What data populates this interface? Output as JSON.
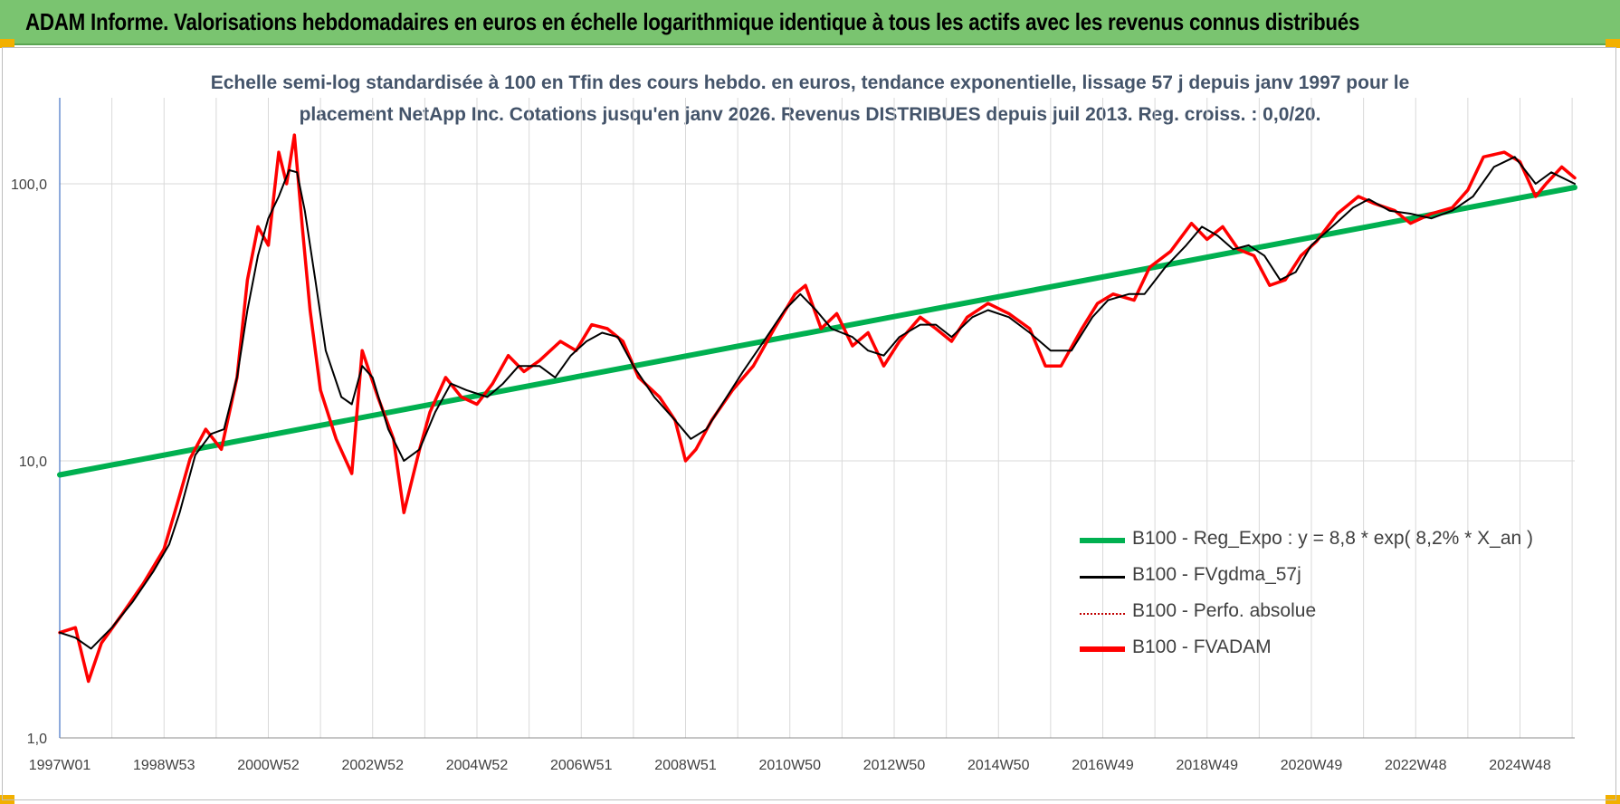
{
  "banner": {
    "title": "ADAM Informe. Valorisations hebdomadaires en euros en échelle logarithmique identique à tous les actifs avec les revenus connus distribués"
  },
  "chart_subtitle_line1": "Echelle semi-log standardisée à 100 en Tfin des cours hebdo. en euros, tendance exponentielle, lissage 57 j depuis janv 1997 pour le",
  "chart_subtitle_line2": "placement NetApp Inc. Cotations jusqu'en janv 2026. Revenus DISTRIBUES depuis juil 2013. Reg. croiss. : 0,0/20.",
  "colors": {
    "banner": "#7ac470",
    "regression": "#00b050",
    "smoothed": "#000000",
    "perf_absolue": "#c00000",
    "fvadam": "#ff0000",
    "grid": "#d9d9d9",
    "subtitle": "#44546a"
  },
  "chart_data": {
    "type": "line",
    "y_scale": "log",
    "ylim": [
      1,
      160
    ],
    "y_ticks": [
      {
        "value": 1,
        "label": "1,0"
      },
      {
        "value": 10,
        "label": "10,0"
      },
      {
        "value": 100,
        "label": "100,0"
      }
    ],
    "x_range": [
      1997.0,
      2026.05
    ],
    "x_tick_labels": [
      "1997W01",
      "1998W53",
      "2000W52",
      "2002W52",
      "2004W52",
      "2006W51",
      "2008W51",
      "2010W50",
      "2012W50",
      "2014W50",
      "2016W49",
      "2018W49",
      "2020W49",
      "2022W48",
      "2024W48"
    ],
    "x_tick_years": [
      1997.0,
      1999.0,
      2001.0,
      2003.0,
      2005.0,
      2007.0,
      2009.0,
      2011.0,
      2013.0,
      2015.0,
      2017.0,
      2019.0,
      2021.0,
      2023.0,
      2025.0
    ],
    "grid": true,
    "legend_placement": "lower-right",
    "series": [
      {
        "name": "B100 - Reg_Expo : y = 8,8 * exp( 8,2% *  X_an )",
        "kind": "regression",
        "points": [
          [
            1997.0,
            8.9
          ],
          [
            2026.05,
            97
          ]
        ]
      },
      {
        "name": "B100 - FVgdma_57j",
        "kind": "smoothed",
        "points": [
          [
            1997.0,
            2.4
          ],
          [
            1997.3,
            2.3
          ],
          [
            1997.6,
            2.1
          ],
          [
            1998.0,
            2.5
          ],
          [
            1998.4,
            3.1
          ],
          [
            1998.8,
            4.0
          ],
          [
            1999.1,
            5.0
          ],
          [
            1999.3,
            6.5
          ],
          [
            1999.6,
            10.5
          ],
          [
            1999.9,
            12.5
          ],
          [
            2000.15,
            13
          ],
          [
            2000.4,
            20
          ],
          [
            2000.6,
            35
          ],
          [
            2000.8,
            55
          ],
          [
            2001.0,
            75
          ],
          [
            2001.2,
            90
          ],
          [
            2001.4,
            112
          ],
          [
            2001.55,
            110
          ],
          [
            2001.7,
            80
          ],
          [
            2001.9,
            45
          ],
          [
            2002.1,
            25
          ],
          [
            2002.4,
            17
          ],
          [
            2002.6,
            16
          ],
          [
            2002.8,
            22
          ],
          [
            2003.0,
            20
          ],
          [
            2003.3,
            13
          ],
          [
            2003.6,
            10
          ],
          [
            2003.9,
            11
          ],
          [
            2004.2,
            15
          ],
          [
            2004.5,
            19
          ],
          [
            2004.8,
            18
          ],
          [
            2005.2,
            17
          ],
          [
            2005.5,
            19
          ],
          [
            2005.8,
            22
          ],
          [
            2006.2,
            22
          ],
          [
            2006.5,
            20
          ],
          [
            2006.8,
            24
          ],
          [
            2007.1,
            27
          ],
          [
            2007.4,
            29
          ],
          [
            2007.7,
            28
          ],
          [
            2008.0,
            22
          ],
          [
            2008.4,
            17
          ],
          [
            2008.8,
            14
          ],
          [
            2009.1,
            12
          ],
          [
            2009.4,
            13
          ],
          [
            2009.7,
            16
          ],
          [
            2010.1,
            21
          ],
          [
            2010.5,
            27
          ],
          [
            2010.9,
            35
          ],
          [
            2011.2,
            40
          ],
          [
            2011.5,
            35
          ],
          [
            2011.8,
            30
          ],
          [
            2012.2,
            28
          ],
          [
            2012.5,
            25
          ],
          [
            2012.8,
            24
          ],
          [
            2013.1,
            28
          ],
          [
            2013.5,
            31
          ],
          [
            2013.8,
            31
          ],
          [
            2014.1,
            28
          ],
          [
            2014.5,
            33
          ],
          [
            2014.8,
            35
          ],
          [
            2015.2,
            33
          ],
          [
            2015.6,
            29
          ],
          [
            2016.0,
            25
          ],
          [
            2016.4,
            25
          ],
          [
            2016.8,
            33
          ],
          [
            2017.1,
            38
          ],
          [
            2017.5,
            40
          ],
          [
            2017.8,
            40
          ],
          [
            2018.2,
            50
          ],
          [
            2018.6,
            60
          ],
          [
            2018.9,
            70
          ],
          [
            2019.2,
            65
          ],
          [
            2019.5,
            58
          ],
          [
            2019.8,
            60
          ],
          [
            2020.1,
            55
          ],
          [
            2020.4,
            45
          ],
          [
            2020.7,
            48
          ],
          [
            2021.0,
            60
          ],
          [
            2021.4,
            70
          ],
          [
            2021.8,
            82
          ],
          [
            2022.1,
            88
          ],
          [
            2022.5,
            80
          ],
          [
            2022.9,
            78
          ],
          [
            2023.3,
            75
          ],
          [
            2023.7,
            80
          ],
          [
            2024.1,
            90
          ],
          [
            2024.5,
            115
          ],
          [
            2024.9,
            125
          ],
          [
            2025.3,
            100
          ],
          [
            2025.6,
            110
          ],
          [
            2026.05,
            100
          ]
        ]
      },
      {
        "name": "B100 - Perfo. absolue",
        "kind": "dotted",
        "points": [
          [
            1997.0,
            2.4
          ],
          [
            1997.3,
            2.5
          ],
          [
            1997.55,
            1.6
          ],
          [
            1997.8,
            2.2
          ],
          [
            1998.2,
            2.8
          ],
          [
            1998.6,
            3.6
          ],
          [
            1999.0,
            4.8
          ],
          [
            1999.3,
            7.5
          ],
          [
            1999.5,
            10.2
          ],
          [
            1999.8,
            13
          ],
          [
            2000.1,
            11
          ],
          [
            2000.4,
            20
          ],
          [
            2000.6,
            45
          ],
          [
            2000.8,
            70
          ],
          [
            2001.0,
            60
          ],
          [
            2001.2,
            130
          ],
          [
            2001.35,
            100
          ],
          [
            2001.5,
            150
          ],
          [
            2001.65,
            70
          ],
          [
            2001.8,
            35
          ],
          [
            2002.0,
            18
          ],
          [
            2002.3,
            12
          ],
          [
            2002.6,
            9
          ],
          [
            2002.8,
            25
          ],
          [
            2003.1,
            17
          ],
          [
            2003.4,
            12
          ],
          [
            2003.6,
            6.5
          ],
          [
            2003.9,
            11
          ],
          [
            2004.1,
            15
          ],
          [
            2004.4,
            20
          ],
          [
            2004.7,
            17
          ],
          [
            2005.0,
            16
          ],
          [
            2005.3,
            19
          ],
          [
            2005.6,
            24
          ],
          [
            2005.9,
            21
          ],
          [
            2006.2,
            23
          ],
          [
            2006.6,
            27
          ],
          [
            2006.9,
            25
          ],
          [
            2007.2,
            31
          ],
          [
            2007.5,
            30
          ],
          [
            2007.8,
            27
          ],
          [
            2008.1,
            20
          ],
          [
            2008.5,
            17
          ],
          [
            2008.8,
            14
          ],
          [
            2009.0,
            10
          ],
          [
            2009.2,
            11
          ],
          [
            2009.5,
            14
          ],
          [
            2009.9,
            18
          ],
          [
            2010.3,
            22
          ],
          [
            2010.7,
            30
          ],
          [
            2011.1,
            40
          ],
          [
            2011.3,
            43
          ],
          [
            2011.6,
            30
          ],
          [
            2011.9,
            34
          ],
          [
            2012.2,
            26
          ],
          [
            2012.5,
            29
          ],
          [
            2012.8,
            22
          ],
          [
            2013.1,
            27
          ],
          [
            2013.5,
            33
          ],
          [
            2013.8,
            30
          ],
          [
            2014.1,
            27
          ],
          [
            2014.4,
            33
          ],
          [
            2014.8,
            37
          ],
          [
            2015.2,
            34
          ],
          [
            2015.6,
            30
          ],
          [
            2015.9,
            22
          ],
          [
            2016.2,
            22
          ],
          [
            2016.6,
            30
          ],
          [
            2016.9,
            37
          ],
          [
            2017.2,
            40
          ],
          [
            2017.6,
            38
          ],
          [
            2017.9,
            50
          ],
          [
            2018.3,
            57
          ],
          [
            2018.7,
            72
          ],
          [
            2019.0,
            63
          ],
          [
            2019.3,
            70
          ],
          [
            2019.6,
            58
          ],
          [
            2019.9,
            55
          ],
          [
            2020.2,
            43
          ],
          [
            2020.5,
            45
          ],
          [
            2020.8,
            55
          ],
          [
            2021.1,
            62
          ],
          [
            2021.5,
            78
          ],
          [
            2021.9,
            90
          ],
          [
            2022.2,
            85
          ],
          [
            2022.6,
            80
          ],
          [
            2022.9,
            72
          ],
          [
            2023.3,
            78
          ],
          [
            2023.7,
            82
          ],
          [
            2024.0,
            95
          ],
          [
            2024.3,
            125
          ],
          [
            2024.7,
            130
          ],
          [
            2025.0,
            120
          ],
          [
            2025.3,
            90
          ],
          [
            2025.5,
            100
          ],
          [
            2025.8,
            115
          ],
          [
            2026.05,
            105
          ]
        ]
      },
      {
        "name": "B100 - FVADAM",
        "kind": "thick",
        "points": [
          [
            1997.0,
            2.4
          ],
          [
            1997.3,
            2.5
          ],
          [
            1997.55,
            1.6
          ],
          [
            1997.8,
            2.2
          ],
          [
            1998.2,
            2.8
          ],
          [
            1998.6,
            3.6
          ],
          [
            1999.0,
            4.8
          ],
          [
            1999.3,
            7.5
          ],
          [
            1999.5,
            10.2
          ],
          [
            1999.8,
            13
          ],
          [
            2000.1,
            11
          ],
          [
            2000.4,
            20
          ],
          [
            2000.6,
            45
          ],
          [
            2000.8,
            70
          ],
          [
            2001.0,
            60
          ],
          [
            2001.2,
            130
          ],
          [
            2001.35,
            100
          ],
          [
            2001.5,
            150
          ],
          [
            2001.65,
            70
          ],
          [
            2001.8,
            35
          ],
          [
            2002.0,
            18
          ],
          [
            2002.3,
            12
          ],
          [
            2002.6,
            9
          ],
          [
            2002.8,
            25
          ],
          [
            2003.1,
            17
          ],
          [
            2003.4,
            12
          ],
          [
            2003.6,
            6.5
          ],
          [
            2003.9,
            11
          ],
          [
            2004.1,
            15
          ],
          [
            2004.4,
            20
          ],
          [
            2004.7,
            17
          ],
          [
            2005.0,
            16
          ],
          [
            2005.3,
            19
          ],
          [
            2005.6,
            24
          ],
          [
            2005.9,
            21
          ],
          [
            2006.2,
            23
          ],
          [
            2006.6,
            27
          ],
          [
            2006.9,
            25
          ],
          [
            2007.2,
            31
          ],
          [
            2007.5,
            30
          ],
          [
            2007.8,
            27
          ],
          [
            2008.1,
            20
          ],
          [
            2008.5,
            17
          ],
          [
            2008.8,
            14
          ],
          [
            2009.0,
            10
          ],
          [
            2009.2,
            11
          ],
          [
            2009.5,
            14
          ],
          [
            2009.9,
            18
          ],
          [
            2010.3,
            22
          ],
          [
            2010.7,
            30
          ],
          [
            2011.1,
            40
          ],
          [
            2011.3,
            43
          ],
          [
            2011.6,
            30
          ],
          [
            2011.9,
            34
          ],
          [
            2012.2,
            26
          ],
          [
            2012.5,
            29
          ],
          [
            2012.8,
            22
          ],
          [
            2013.1,
            27
          ],
          [
            2013.5,
            33
          ],
          [
            2013.8,
            30
          ],
          [
            2014.1,
            27
          ],
          [
            2014.4,
            33
          ],
          [
            2014.8,
            37
          ],
          [
            2015.2,
            34
          ],
          [
            2015.6,
            30
          ],
          [
            2015.9,
            22
          ],
          [
            2016.2,
            22
          ],
          [
            2016.6,
            30
          ],
          [
            2016.9,
            37
          ],
          [
            2017.2,
            40
          ],
          [
            2017.6,
            38
          ],
          [
            2017.9,
            50
          ],
          [
            2018.3,
            57
          ],
          [
            2018.7,
            72
          ],
          [
            2019.0,
            63
          ],
          [
            2019.3,
            70
          ],
          [
            2019.6,
            58
          ],
          [
            2019.9,
            55
          ],
          [
            2020.2,
            43
          ],
          [
            2020.5,
            45
          ],
          [
            2020.8,
            55
          ],
          [
            2021.1,
            62
          ],
          [
            2021.5,
            78
          ],
          [
            2021.9,
            90
          ],
          [
            2022.2,
            85
          ],
          [
            2022.6,
            80
          ],
          [
            2022.9,
            72
          ],
          [
            2023.3,
            78
          ],
          [
            2023.7,
            82
          ],
          [
            2024.0,
            95
          ],
          [
            2024.3,
            125
          ],
          [
            2024.7,
            130
          ],
          [
            2025.0,
            120
          ],
          [
            2025.3,
            90
          ],
          [
            2025.5,
            100
          ],
          [
            2025.8,
            115
          ],
          [
            2026.05,
            105
          ]
        ]
      }
    ]
  },
  "legend": [
    {
      "label": "B100 - Reg_Expo : y = 8,8 * exp( 8,2% *  X_an )",
      "style": "regression"
    },
    {
      "label": "B100 - FVgdma_57j",
      "style": "smoothed"
    },
    {
      "label": "B100 - Perfo. absolue",
      "style": "dotted"
    },
    {
      "label": "B100 - FVADAM",
      "style": "thick"
    }
  ]
}
